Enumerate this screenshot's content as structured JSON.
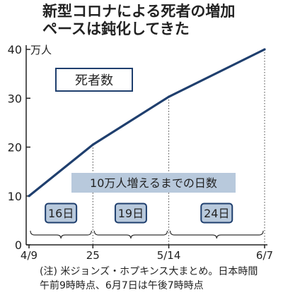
{
  "title_lines": [
    "新型コロナによる死者の増加",
    "ペースは鈍化してきた"
  ],
  "chart_data": {
    "type": "line",
    "unit": "万人",
    "series_label": "死者数",
    "x": [
      "4/9",
      "25",
      "5/14",
      "6/7"
    ],
    "x_dates": [
      "2020-04-09",
      "2020-04-25",
      "2020-05-14",
      "2020-06-07"
    ],
    "values": [
      10,
      20.5,
      30.3,
      40
    ],
    "ylim": [
      0,
      40
    ],
    "yticks": [
      0,
      10,
      20,
      30,
      40
    ],
    "grid": false,
    "annotation_title": "10万人増えるまでの日数",
    "intervals": [
      {
        "from": "4/9",
        "to": "25",
        "label": "16日"
      },
      {
        "from": "25",
        "to": "5/14",
        "label": "19日"
      },
      {
        "from": "5/14",
        "to": "6/7",
        "label": "24日"
      }
    ],
    "colors": {
      "line": "#1f3f6e",
      "box_fill": "#b8c9dc",
      "box_border": "#1f3f6e",
      "axis": "#222222"
    }
  },
  "note_lines": [
    "(注) 米ジョンズ・ホプキンス大まとめ。日本時間",
    "午前9時時点、6月7日は午後7時時点"
  ]
}
